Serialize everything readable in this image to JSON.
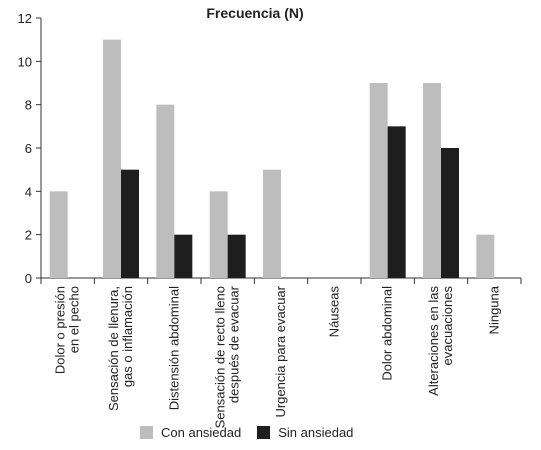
{
  "chart_data": {
    "type": "bar",
    "title": "Frecuencia (N)",
    "xlabel": "",
    "ylabel": "",
    "ylim": [
      0,
      12
    ],
    "yticks": [
      0,
      2,
      4,
      6,
      8,
      10,
      12
    ],
    "grid": false,
    "legend_position": "bottom",
    "categories": [
      [
        "Dolor o presión",
        "en el pecho"
      ],
      [
        "Sensación de llenura,",
        "gas o inflamación"
      ],
      [
        "Distensión abdominal"
      ],
      [
        "Sensación de recto lleno",
        "después de evacuar"
      ],
      [
        "Urgencia para evacuar"
      ],
      [
        "Náuseas"
      ],
      [
        "Dolor abdominal"
      ],
      [
        "Alteraciones en las",
        "evacuaciones"
      ],
      [
        "Ninguna"
      ]
    ],
    "series": [
      {
        "name": "Con ansiedad",
        "color": "#bdbdbd",
        "values": [
          4,
          11,
          8,
          4,
          5,
          0,
          9,
          9,
          2
        ]
      },
      {
        "name": "Sin ansiedad",
        "color": "#1e1e1e",
        "values": [
          0,
          5,
          2,
          2,
          0,
          0,
          7,
          6,
          0
        ]
      }
    ]
  }
}
